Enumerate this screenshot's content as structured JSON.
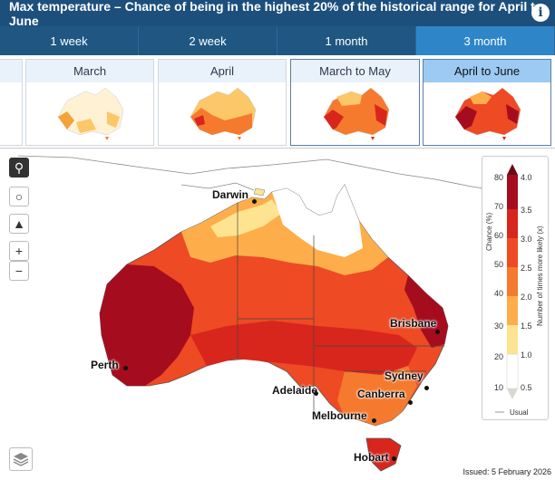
{
  "header": {
    "title": "Max temperature – Chance of being in the highest 20% of the historical range for April to June",
    "info_icon": "info-icon"
  },
  "tabs": [
    {
      "label": "1 week",
      "active": false
    },
    {
      "label": "2 week",
      "active": false
    },
    {
      "label": "1 month",
      "active": false
    },
    {
      "label": "3 month",
      "active": true
    }
  ],
  "thumbnails": [
    {
      "label": "March",
      "selected": false
    },
    {
      "label": "April",
      "selected": false
    },
    {
      "label": "March to May",
      "selected": true
    },
    {
      "label": "April to June",
      "selected": true,
      "active": true
    }
  ],
  "map": {
    "cities": [
      "Darwin",
      "Brisbane",
      "Perth",
      "Sydney",
      "Adelaide",
      "Canberra",
      "Melbourne",
      "Hobart"
    ],
    "zoom_in": "+",
    "zoom_out": "−",
    "controls": [
      "search-icon",
      "globe-icon",
      "australia-icon",
      "zoom-in-icon",
      "zoom-out-icon",
      "layers-icon"
    ]
  },
  "legend": {
    "left_axis_label": "Chance (%)",
    "right_axis_label": "Number of times more likely (x)",
    "chance_ticks": [
      "80",
      "70",
      "60",
      "50",
      "40",
      "30",
      "20",
      "10"
    ],
    "times_ticks": [
      "4.0",
      "3.5",
      "3.0",
      "2.5",
      "2.0",
      "1.5",
      "1.0",
      "0.5"
    ],
    "usual_label": "Usual",
    "colors": [
      "#a50d1e",
      "#d8261d",
      "#ee4a24",
      "#f57a2e",
      "#fdae4a",
      "#fee491",
      "#ffffff",
      "#ffffff"
    ]
  },
  "issued": "Issued: 5 February 2026"
}
